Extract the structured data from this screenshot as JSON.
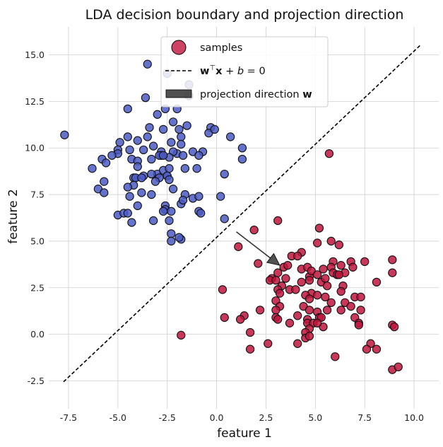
{
  "chart_data": {
    "type": "scatter",
    "title": "LDA decision boundary and projection direction",
    "xlabel": "feature 1",
    "ylabel": "feature 2",
    "xlim": [
      -8.5,
      11.25
    ],
    "ylim": [
      -4.0,
      16.5
    ],
    "xticks": [
      -7.5,
      -5.0,
      -2.5,
      0.0,
      2.5,
      5.0,
      7.5,
      10.0
    ],
    "xtick_labels": [
      "-7.5",
      "-5.0",
      "-2.5",
      "0.0",
      "2.5",
      "5.0",
      "7.5",
      "10.0"
    ],
    "yticks": [
      -2.5,
      0.0,
      2.5,
      5.0,
      7.5,
      10.0,
      12.5,
      15.0
    ],
    "ytick_labels": [
      "-2.5",
      "0.0",
      "2.5",
      "5.0",
      "7.5",
      "10.0",
      "12.5",
      "15.0"
    ],
    "grid": true,
    "legend_position": "top-center",
    "legend": {
      "samples": "samples",
      "boundary": "w^T x + b = 0",
      "direction": "projection direction w"
    },
    "colors": {
      "class0": "#4a5bc4",
      "class1": "#c0143c",
      "boundary": "#000000",
      "arrow": "#333333"
    },
    "series": [
      {
        "name": "",
        "class": 0,
        "points": [
          [
            -7.7,
            10.7
          ],
          [
            -3.5,
            14.5
          ],
          [
            -2.5,
            14.0
          ],
          [
            -2.6,
            12.1
          ],
          [
            -2.0,
            12.1
          ],
          [
            -4.5,
            12.1
          ],
          [
            -1.4,
            12.8
          ],
          [
            -3.6,
            12.7
          ],
          [
            -1.4,
            13.4
          ],
          [
            -3.0,
            11.8
          ],
          [
            -2.2,
            11.4
          ],
          [
            -1.5,
            11.2
          ],
          [
            -1.9,
            11.0
          ],
          [
            -2.7,
            11.0
          ],
          [
            -3.4,
            11.1
          ],
          [
            -0.3,
            11.1
          ],
          [
            -0.4,
            10.8
          ],
          [
            -0.1,
            11.0
          ],
          [
            0.7,
            10.6
          ],
          [
            -1.8,
            10.6
          ],
          [
            -2.3,
            10.3
          ],
          [
            -3.5,
            10.6
          ],
          [
            -4.5,
            10.6
          ],
          [
            -3.2,
            10.1
          ],
          [
            -4.9,
            10.3
          ],
          [
            -4.0,
            10.4
          ],
          [
            -5.0,
            9.9
          ],
          [
            -1.8,
            10.2
          ],
          [
            -4.4,
            9.9
          ],
          [
            -3.7,
            9.9
          ],
          [
            -2.8,
            9.8
          ],
          [
            -2.0,
            9.7
          ],
          [
            -2.2,
            9.8
          ],
          [
            -1.2,
            9.8
          ],
          [
            -5.0,
            9.7
          ],
          [
            -5.3,
            9.6
          ],
          [
            -0.7,
            9.8
          ],
          [
            -0.9,
            9.6
          ],
          [
            -2.8,
            9.6
          ],
          [
            -3.3,
            9.4
          ],
          [
            -2.4,
            9.5
          ],
          [
            -1.7,
            9.6
          ],
          [
            -4.3,
            9.4
          ],
          [
            -5.8,
            9.4
          ],
          [
            -5.6,
            9.2
          ],
          [
            -2.9,
            9.6
          ],
          [
            -4.0,
            9.3
          ],
          [
            -2.7,
            9.6
          ],
          [
            -4.0,
            9.0
          ],
          [
            -6.3,
            8.9
          ],
          [
            -3.0,
            8.6
          ],
          [
            -3.3,
            8.6
          ],
          [
            -3.7,
            8.5
          ],
          [
            -2.7,
            8.8
          ],
          [
            -1.6,
            8.9
          ],
          [
            -1.0,
            8.9
          ],
          [
            -2.4,
            8.9
          ],
          [
            -2.5,
            8.5
          ],
          [
            -2.5,
            8.5
          ],
          [
            -2.4,
            8.3
          ],
          [
            -2.9,
            8.4
          ],
          [
            -3.1,
            8.2
          ],
          [
            -4.2,
            8.4
          ],
          [
            -4.1,
            8.4
          ],
          [
            -3.8,
            8.4
          ],
          [
            -4.2,
            8.0
          ],
          [
            -4.5,
            7.9
          ],
          [
            -5.7,
            8.2
          ],
          [
            -6.0,
            7.8
          ],
          [
            -5.7,
            7.6
          ],
          [
            -4.4,
            7.4
          ],
          [
            -3.8,
            7.6
          ],
          [
            -3.3,
            7.5
          ],
          [
            -2.2,
            7.8
          ],
          [
            -1.6,
            7.5
          ],
          [
            -1.2,
            7.3
          ],
          [
            -0.9,
            7.4
          ],
          [
            0.2,
            7.4
          ],
          [
            -4.0,
            6.9
          ],
          [
            -2.6,
            6.9
          ],
          [
            -2.6,
            6.7
          ],
          [
            -2.3,
            6.6
          ],
          [
            -2.7,
            6.6
          ],
          [
            -1.8,
            7.0
          ],
          [
            -1.7,
            7.2
          ],
          [
            -5.0,
            6.4
          ],
          [
            -4.7,
            6.5
          ],
          [
            -4.5,
            6.5
          ],
          [
            -4.3,
            6.0
          ],
          [
            -3.2,
            6.1
          ],
          [
            -2.4,
            6.1
          ],
          [
            -0.9,
            6.6
          ],
          [
            -0.8,
            6.5
          ],
          [
            0.4,
            6.2
          ],
          [
            -2.3,
            5.4
          ],
          [
            -1.8,
            5.1
          ],
          [
            -2.3,
            5.0
          ],
          [
            -1.9,
            5.2
          ],
          [
            0.4,
            8.6
          ],
          [
            1.3,
            10.0
          ],
          [
            1.3,
            9.4
          ]
        ]
      },
      {
        "name": "",
        "class": 1,
        "points": [
          [
            5.7,
            9.7
          ],
          [
            3.1,
            6.1
          ],
          [
            5.2,
            5.7
          ],
          [
            1.9,
            5.6
          ],
          [
            5.1,
            4.9
          ],
          [
            5.8,
            5.0
          ],
          [
            6.2,
            4.8
          ],
          [
            8.9,
            4.0
          ],
          [
            6.8,
            3.9
          ],
          [
            1.1,
            4.7
          ],
          [
            4.3,
            4.4
          ],
          [
            3.8,
            4.2
          ],
          [
            4.1,
            4.2
          ],
          [
            5.9,
            3.9
          ],
          [
            2.1,
            3.8
          ],
          [
            3.4,
            3.6
          ],
          [
            3.6,
            3.7
          ],
          [
            4.3,
            3.5
          ],
          [
            4.6,
            3.6
          ],
          [
            5.4,
            3.5
          ],
          [
            5.8,
            3.6
          ],
          [
            6.3,
            3.7
          ],
          [
            7.5,
            3.9
          ],
          [
            3.1,
            3.3
          ],
          [
            2.8,
            3.0
          ],
          [
            3.5,
            3.0
          ],
          [
            4.7,
            3.1
          ],
          [
            4.8,
            3.4
          ],
          [
            5.1,
            3.2
          ],
          [
            5.9,
            3.3
          ],
          [
            6.5,
            3.3
          ],
          [
            6.9,
            3.6
          ],
          [
            8.9,
            3.3
          ],
          [
            4.3,
            2.8
          ],
          [
            4.7,
            2.9
          ],
          [
            5.3,
            2.8
          ],
          [
            8.1,
            2.8
          ],
          [
            2.7,
            2.9
          ],
          [
            3.0,
            2.9
          ],
          [
            5.5,
            3.0
          ],
          [
            6.1,
            3.2
          ],
          [
            6.2,
            3.2
          ],
          [
            3.3,
            2.6
          ],
          [
            3.7,
            2.4
          ],
          [
            4.0,
            2.4
          ],
          [
            5.6,
            2.6
          ],
          [
            6.4,
            2.6
          ],
          [
            0.3,
            2.4
          ],
          [
            3.1,
            2.4
          ],
          [
            4.8,
            2.2
          ],
          [
            6.3,
            2.3
          ],
          [
            3.2,
            2.2
          ],
          [
            4.5,
            2.1
          ],
          [
            5.1,
            2.1
          ],
          [
            5.5,
            2.0
          ],
          [
            7.0,
            2.0
          ],
          [
            7.3,
            2.0
          ],
          [
            3.0,
            1.8
          ],
          [
            4.7,
            1.9
          ],
          [
            5.8,
            1.7
          ],
          [
            6.5,
            1.7
          ],
          [
            3.2,
            1.5
          ],
          [
            4.4,
            1.5
          ],
          [
            6.8,
            1.5
          ],
          [
            2.2,
            1.3
          ],
          [
            3.0,
            1.3
          ],
          [
            4.7,
            1.3
          ],
          [
            5.1,
            1.2
          ],
          [
            5.6,
            1.3
          ],
          [
            6.3,
            1.3
          ],
          [
            7.3,
            1.3
          ],
          [
            4.1,
            1.0
          ],
          [
            5.2,
            0.9
          ],
          [
            1.4,
            1.0
          ],
          [
            0.4,
            0.9
          ],
          [
            3.0,
            0.9
          ],
          [
            3.1,
            0.8
          ],
          [
            4.6,
            0.8
          ],
          [
            5.3,
            0.9
          ],
          [
            7.0,
            0.9
          ],
          [
            1.2,
            0.8
          ],
          [
            3.7,
            0.6
          ],
          [
            4.6,
            0.6
          ],
          [
            4.9,
            0.6
          ],
          [
            7.2,
            0.6
          ],
          [
            7.2,
            0.5
          ],
          [
            4.7,
            0.3
          ],
          [
            5.4,
            0.4
          ],
          [
            5.1,
            0.6
          ],
          [
            8.9,
            0.5
          ],
          [
            9.0,
            0.4
          ],
          [
            1.7,
            0.1
          ],
          [
            4.5,
            0.1
          ],
          [
            4.5,
            -0.2
          ],
          [
            -1.8,
            -0.05
          ],
          [
            4.7,
            -0.1
          ],
          [
            7.8,
            -0.5
          ],
          [
            2.6,
            -0.5
          ],
          [
            4.1,
            -0.5
          ],
          [
            7.6,
            -0.8
          ],
          [
            8.1,
            -0.8
          ],
          [
            1.7,
            -0.8
          ],
          [
            6.0,
            -1.2
          ],
          [
            8.9,
            -1.9
          ],
          [
            9.2,
            -1.75
          ]
        ]
      }
    ],
    "boundary": {
      "slope": 1.0,
      "intercept": 5.2,
      "x_range": [
        -7.75,
        10.3
      ]
    },
    "arrow": {
      "start": [
        1.0,
        5.5
      ],
      "end": [
        3.2,
        3.7
      ]
    }
  }
}
